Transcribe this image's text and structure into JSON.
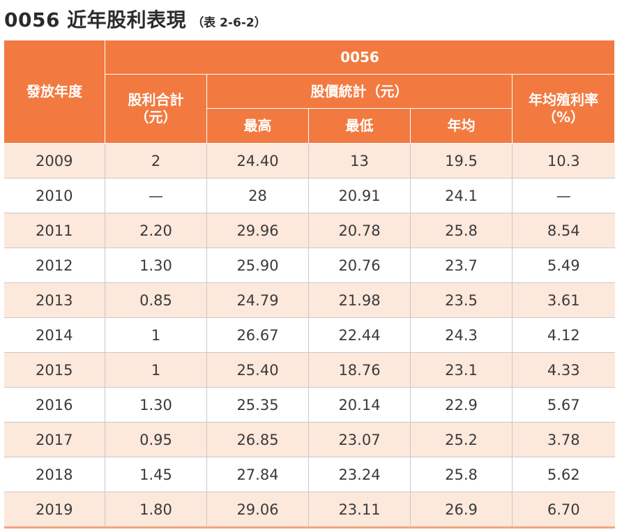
{
  "title": {
    "main": "0056 近年股利表現",
    "sub": "（表 2-6-2）"
  },
  "table": {
    "header_fund": "0056",
    "col_year": "發放年度",
    "col_dividend": [
      "股利合計",
      "（元）"
    ],
    "col_price_group": "股價統計（元）",
    "col_high": "最高",
    "col_low": "最低",
    "col_avg": "年均",
    "col_yield": [
      "年均殖利率",
      "（%）"
    ],
    "rows": [
      {
        "year": "2009",
        "dividend": "2",
        "high": "24.40",
        "low": "13",
        "avg": "19.5",
        "yield": "10.3"
      },
      {
        "year": "2010",
        "dividend": "—",
        "high": "28",
        "low": "20.91",
        "avg": "24.1",
        "yield": "—"
      },
      {
        "year": "2011",
        "dividend": "2.20",
        "high": "29.96",
        "low": "20.78",
        "avg": "25.8",
        "yield": "8.54"
      },
      {
        "year": "2012",
        "dividend": "1.30",
        "high": "25.90",
        "low": "20.76",
        "avg": "23.7",
        "yield": "5.49"
      },
      {
        "year": "2013",
        "dividend": "0.85",
        "high": "24.79",
        "low": "21.98",
        "avg": "23.5",
        "yield": "3.61"
      },
      {
        "year": "2014",
        "dividend": "1",
        "high": "26.67",
        "low": "22.44",
        "avg": "24.3",
        "yield": "4.12"
      },
      {
        "year": "2015",
        "dividend": "1",
        "high": "25.40",
        "low": "18.76",
        "avg": "23.1",
        "yield": "4.33"
      },
      {
        "year": "2016",
        "dividend": "1.30",
        "high": "25.35",
        "low": "20.14",
        "avg": "22.9",
        "yield": "5.67"
      },
      {
        "year": "2017",
        "dividend": "0.95",
        "high": "26.85",
        "low": "23.07",
        "avg": "25.2",
        "yield": "3.78"
      },
      {
        "year": "2018",
        "dividend": "1.45",
        "high": "27.84",
        "low": "23.24",
        "avg": "25.8",
        "yield": "5.62"
      },
      {
        "year": "2019",
        "dividend": "1.80",
        "high": "29.06",
        "low": "23.11",
        "avg": "26.9",
        "yield": "6.70"
      }
    ]
  },
  "colors": {
    "header_bg": "#f27a40",
    "stripe_bg": "#fde8dc",
    "bottom_rule": "#f3a57e"
  }
}
